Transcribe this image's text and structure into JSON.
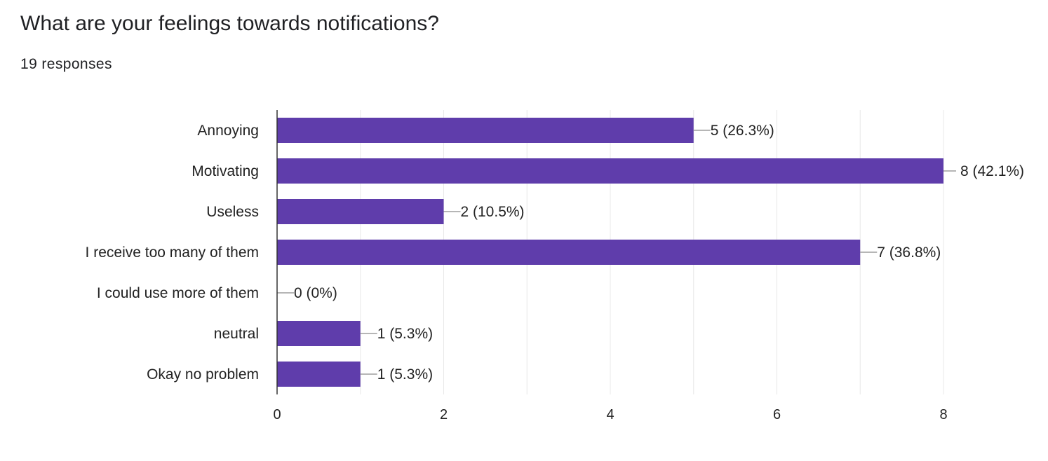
{
  "header": {
    "title": "What are your feelings towards notifications?",
    "responses": "19 responses"
  },
  "colors": {
    "bar": "#5f3dab",
    "grid": "#e8e8e8",
    "axis": "#333333",
    "connector": "#9e9e9e"
  },
  "chart_data": {
    "type": "bar",
    "orientation": "horizontal",
    "title": "What are your feelings towards notifications?",
    "subtitle": "19 responses",
    "categories": [
      "Annoying",
      "Motivating",
      "Useless",
      "I receive too many of them",
      "I could use more of them",
      "neutral",
      "Okay no problem"
    ],
    "values": [
      5,
      8,
      2,
      7,
      0,
      1,
      1
    ],
    "data_labels": [
      "5 (26.3%)",
      "8 (42.1%)",
      "2 (10.5%)",
      "7 (36.8%)",
      "0 (0%)",
      "1 (5.3%)",
      "1 (5.3%)"
    ],
    "xlim": [
      0,
      8
    ],
    "x_ticks": [
      0,
      2,
      4,
      6,
      8
    ],
    "grid": true,
    "legend": "none"
  }
}
